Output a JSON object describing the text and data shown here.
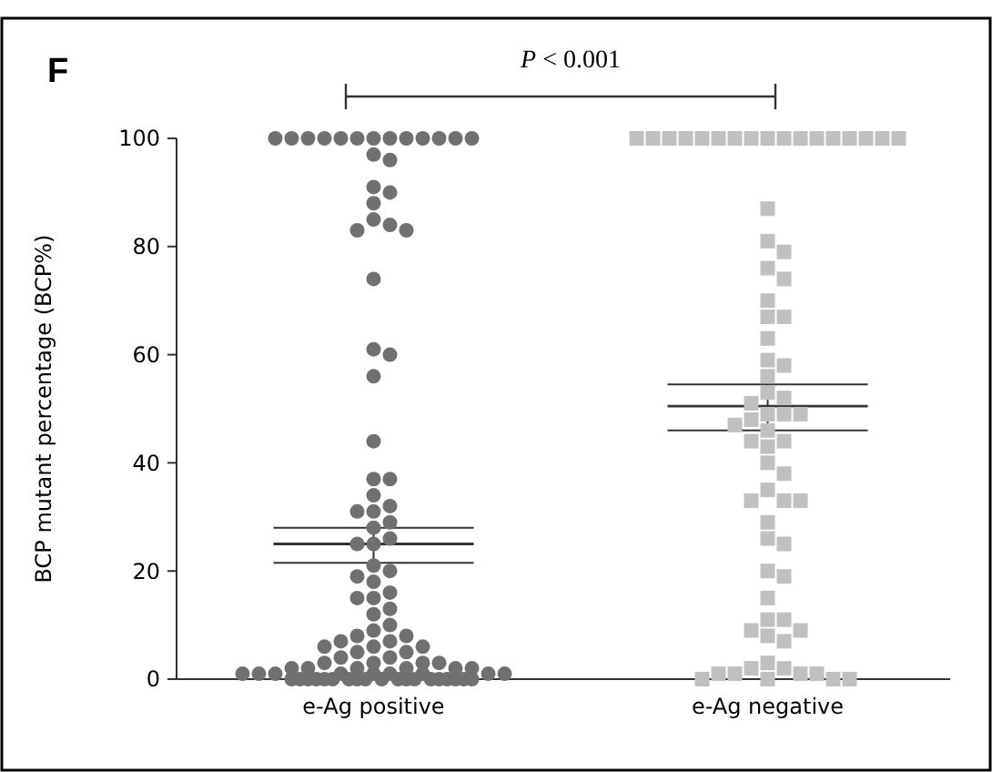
{
  "chart_data": {
    "type": "scatter",
    "title": "F",
    "ylabel": "BCP mutant percentage (BCP%)",
    "categories": [
      "e-Ag positive",
      "e-Ag negative"
    ],
    "ylim": [
      0,
      100
    ],
    "yticks": [
      0,
      20,
      40,
      60,
      80,
      100
    ],
    "annotations": [
      "P < 0.001"
    ],
    "series": [
      {
        "color": "#707070",
        "marker": "circle",
        "x": [
          "e-Ag positive",
          "e-Ag positive",
          "e-Ag positive",
          "e-Ag positive",
          "e-Ag positive",
          "e-Ag positive",
          "e-Ag positive",
          "e-Ag positive",
          "e-Ag positive",
          "e-Ag positive",
          "e-Ag positive",
          "e-Ag positive",
          "e-Ag positive",
          "e-Ag positive",
          "e-Ag positive",
          "e-Ag positive",
          "e-Ag positive",
          "e-Ag positive",
          "e-Ag positive",
          "e-Ag positive",
          "e-Ag positive",
          "e-Ag positive",
          "e-Ag positive",
          "e-Ag positive",
          "e-Ag positive",
          "e-Ag positive",
          "e-Ag positive",
          "e-Ag positive",
          "e-Ag positive",
          "e-Ag positive",
          "e-Ag positive",
          "e-Ag positive",
          "e-Ag positive",
          "e-Ag positive",
          "e-Ag positive",
          "e-Ag positive",
          "e-Ag positive",
          "e-Ag positive",
          "e-Ag positive",
          "e-Ag positive",
          "e-Ag positive",
          "e-Ag positive",
          "e-Ag positive",
          "e-Ag positive",
          "e-Ag positive",
          "e-Ag positive",
          "e-Ag positive",
          "e-Ag positive",
          "e-Ag positive",
          "e-Ag positive",
          "e-Ag positive",
          "e-Ag positive",
          "e-Ag positive",
          "e-Ag positive",
          "e-Ag positive",
          "e-Ag positive",
          "e-Ag positive",
          "e-Ag positive",
          "e-Ag positive",
          "e-Ag positive",
          "e-Ag positive",
          "e-Ag positive",
          "e-Ag positive",
          "e-Ag positive",
          "e-Ag positive",
          "e-Ag positive",
          "e-Ag positive",
          "e-Ag positive",
          "e-Ag positive",
          "e-Ag positive",
          "e-Ag positive",
          "e-Ag positive",
          "e-Ag positive",
          "e-Ag positive",
          "e-Ag positive",
          "e-Ag positive",
          "e-Ag positive",
          "e-Ag positive",
          "e-Ag positive",
          "e-Ag positive",
          "e-Ag positive",
          "e-Ag positive",
          "e-Ag positive",
          "e-Ag positive",
          "e-Ag positive",
          "e-Ag positive",
          "e-Ag positive",
          "e-Ag positive",
          "e-Ag positive",
          "e-Ag positive",
          "e-Ag positive",
          "e-Ag positive",
          "e-Ag positive",
          "e-Ag positive",
          "e-Ag positive",
          "e-Ag positive",
          "e-Ag positive",
          "e-Ag positive"
        ],
        "values": [
          100,
          100,
          100,
          100,
          100,
          100,
          100,
          100,
          100,
          100,
          100,
          100,
          100,
          97,
          96,
          91,
          90,
          88,
          85,
          84,
          83,
          83,
          74,
          61,
          60,
          56,
          44,
          37,
          37,
          34,
          32,
          31,
          31,
          29,
          28,
          26,
          25,
          25,
          21,
          20,
          19,
          18,
          16,
          15,
          15,
          13,
          12,
          10,
          9,
          8,
          8,
          7,
          7,
          6,
          6,
          6,
          5,
          5,
          4,
          4,
          3,
          3,
          3,
          3,
          2,
          2,
          2,
          2,
          2,
          2,
          1,
          1,
          1,
          1,
          1,
          1,
          1,
          1,
          1,
          0,
          0,
          0,
          0,
          0,
          0,
          0,
          0,
          0,
          0,
          0,
          0,
          0,
          0,
          0,
          0,
          0,
          0,
          0
        ]
      },
      {
        "color": "#c0c0c0",
        "marker": "square",
        "x": [
          "e-Ag negative",
          "e-Ag negative",
          "e-Ag negative",
          "e-Ag negative",
          "e-Ag negative",
          "e-Ag negative",
          "e-Ag negative",
          "e-Ag negative",
          "e-Ag negative",
          "e-Ag negative",
          "e-Ag negative",
          "e-Ag negative",
          "e-Ag negative",
          "e-Ag negative",
          "e-Ag negative",
          "e-Ag negative",
          "e-Ag negative",
          "e-Ag negative",
          "e-Ag negative",
          "e-Ag negative",
          "e-Ag negative",
          "e-Ag negative",
          "e-Ag negative",
          "e-Ag negative",
          "e-Ag negative",
          "e-Ag negative",
          "e-Ag negative",
          "e-Ag negative",
          "e-Ag negative",
          "e-Ag negative",
          "e-Ag negative",
          "e-Ag negative",
          "e-Ag negative",
          "e-Ag negative",
          "e-Ag negative",
          "e-Ag negative",
          "e-Ag negative",
          "e-Ag negative",
          "e-Ag negative",
          "e-Ag negative",
          "e-Ag negative",
          "e-Ag negative",
          "e-Ag negative",
          "e-Ag negative",
          "e-Ag negative",
          "e-Ag negative",
          "e-Ag negative",
          "e-Ag negative",
          "e-Ag negative",
          "e-Ag negative",
          "e-Ag negative",
          "e-Ag negative",
          "e-Ag negative",
          "e-Ag negative",
          "e-Ag negative",
          "e-Ag negative",
          "e-Ag negative",
          "e-Ag negative",
          "e-Ag negative",
          "e-Ag negative",
          "e-Ag negative",
          "e-Ag negative",
          "e-Ag negative",
          "e-Ag negative",
          "e-Ag negative",
          "e-Ag negative",
          "e-Ag negative",
          "e-Ag negative",
          "e-Ag negative",
          "e-Ag negative"
        ],
        "values": [
          100,
          100,
          100,
          100,
          100,
          100,
          100,
          100,
          100,
          100,
          100,
          100,
          100,
          100,
          100,
          100,
          100,
          87,
          81,
          79,
          76,
          74,
          70,
          67,
          67,
          63,
          59,
          58,
          56,
          53,
          52,
          51,
          49,
          49,
          49,
          48,
          47,
          46,
          44,
          44,
          43,
          40,
          38,
          35,
          33,
          33,
          33,
          29,
          26,
          25,
          20,
          19,
          15,
          11,
          11,
          9,
          9,
          8,
          7,
          3,
          2,
          2,
          1,
          1,
          1,
          1,
          0,
          0,
          0,
          0
        ]
      },
      {
        "type": "box",
        "color": "#333333",
        "boxes": [
          {
            "low": 21.5,
            "q1": 21.5,
            "median": 25,
            "q3": 28,
            "high": 28
          },
          {
            "low": 46,
            "q1": 46,
            "median": 50.5,
            "q3": 54.5,
            "high": 54.5
          }
        ]
      }
    ]
  }
}
